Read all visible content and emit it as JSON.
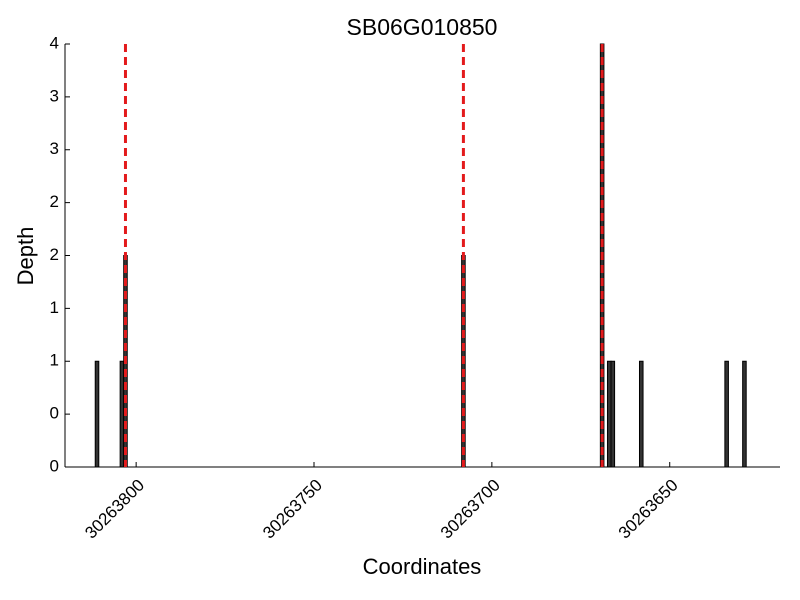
{
  "chart_data": {
    "type": "bar",
    "title": "SB06G010850",
    "x_label": "Coordinates",
    "y_label": "Depth",
    "x": [
      30263811,
      30263804,
      30263803,
      30263708,
      30263669,
      30263667,
      30263666,
      30263658,
      30263634,
      30263629
    ],
    "values": [
      1,
      1,
      2,
      2,
      4,
      1,
      1,
      1,
      1,
      1
    ],
    "color": "#333333",
    "xlim": [
      30263820,
      30263619
    ],
    "xticks": [
      30263800,
      30263750,
      30263700,
      30263650
    ],
    "ylim": [
      0,
      4
    ],
    "yticks": [
      0,
      {
        "value": 0.5,
        "label": "0"
      },
      1,
      {
        "value": 1.5,
        "label": "1"
      },
      2,
      {
        "value": 2.5,
        "label": "2"
      },
      3,
      {
        "value": 3.5,
        "label": "3"
      },
      4
    ],
    "vlines": [
      30263803,
      30263708,
      30263669
    ],
    "vline_color": "#e31a1c"
  }
}
